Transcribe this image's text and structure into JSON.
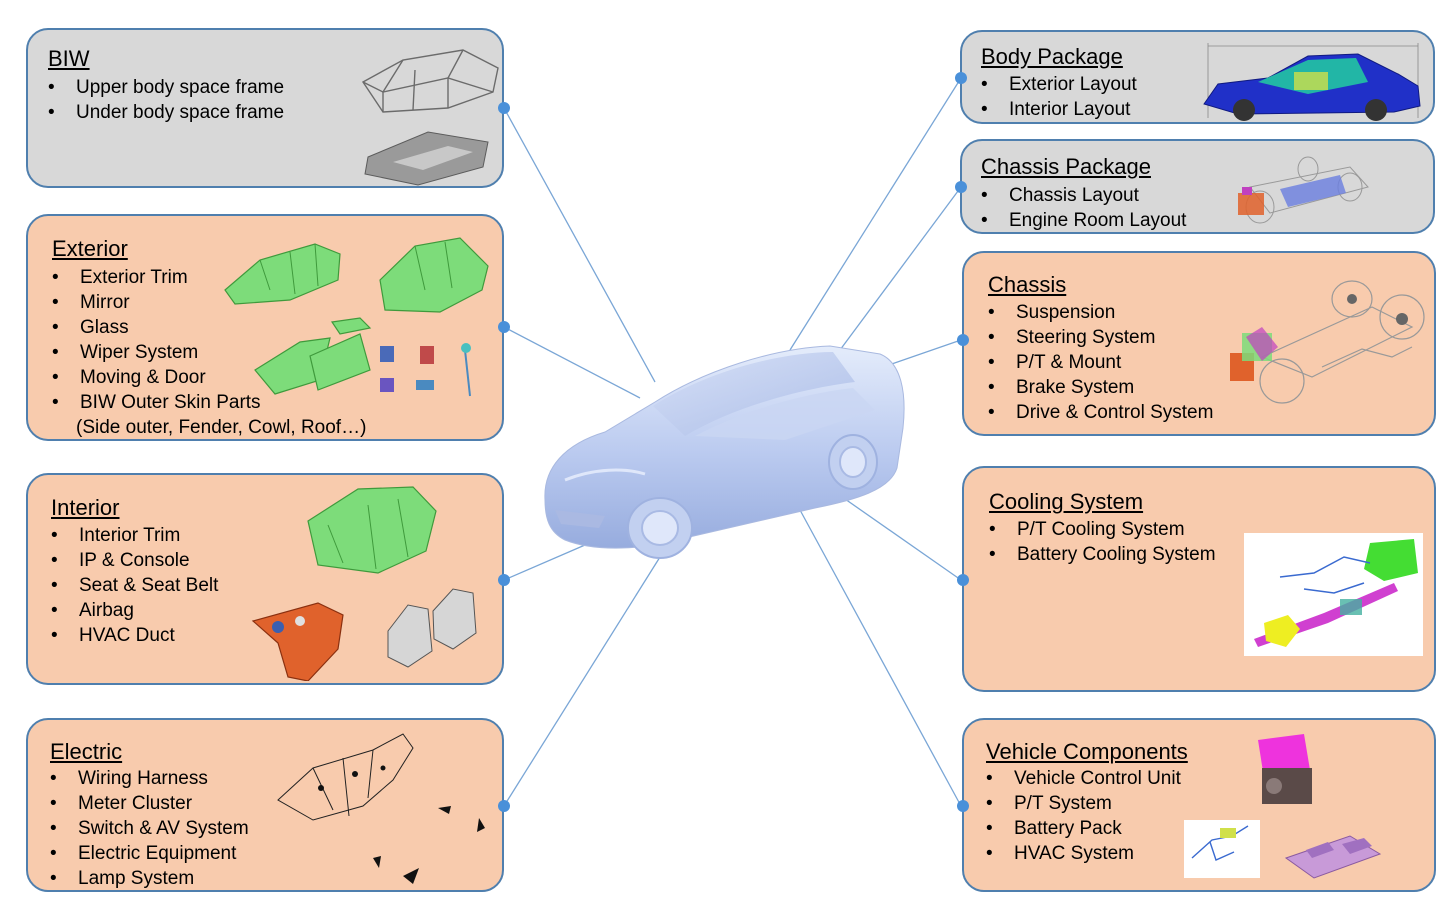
{
  "center": {
    "icon": "car-3d-icon"
  },
  "panels": {
    "biw": {
      "title": "BIW",
      "items": [
        "Upper body space frame",
        "Under body space frame"
      ]
    },
    "exterior": {
      "title": "Exterior",
      "items": [
        "Exterior Trim",
        "Mirror",
        "Glass",
        "Wiper System",
        "Moving & Door",
        "BIW Outer Skin Parts"
      ],
      "note": "(Side outer, Fender, Cowl, Roof…)"
    },
    "interior": {
      "title": "Interior",
      "items": [
        "Interior Trim",
        "IP & Console",
        "Seat & Seat Belt",
        "Airbag",
        "HVAC  Duct"
      ]
    },
    "electric": {
      "title": "Electric",
      "items": [
        "Wiring Harness",
        "Meter Cluster",
        "Switch & AV  System",
        "Electric Equipment",
        "Lamp System"
      ]
    },
    "body_package": {
      "title": "Body Package",
      "items": [
        "Exterior Layout",
        "Interior Layout"
      ]
    },
    "chassis_package": {
      "title": "Chassis Package",
      "items": [
        "Chassis Layout",
        "Engine Room Layout"
      ]
    },
    "chassis": {
      "title": "Chassis",
      "items": [
        "Suspension",
        "Steering System",
        "P/T & Mount",
        "Brake System",
        "Drive & Control System"
      ]
    },
    "cooling": {
      "title": "Cooling System",
      "items": [
        "P/T Cooling System",
        "Battery Cooling System"
      ]
    },
    "vehicle_components": {
      "title": "Vehicle Components",
      "items": [
        "Vehicle Control Unit",
        "P/T System",
        "Battery Pack",
        "HVAC  System"
      ]
    }
  },
  "colors": {
    "gray_panel": "#d8d8d8",
    "peach_panel": "#f8cbad",
    "panel_border": "#4f7fae",
    "connector": "#7aa6d6",
    "dot": "#4a90d9"
  }
}
